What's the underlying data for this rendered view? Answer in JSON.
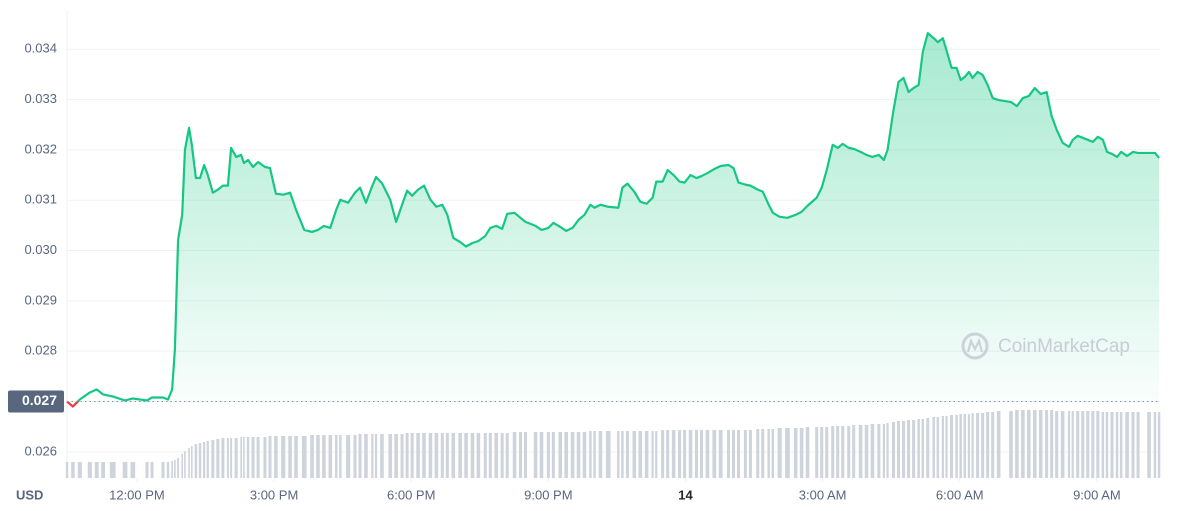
{
  "chart_data": {
    "type": "line",
    "color": "#16c784",
    "down_color": "#ea3943",
    "volume_color": "#cfd3dc",
    "baseline": 0.027,
    "axis_label": "USD",
    "watermark": "CoinMarketCap",
    "grid": true,
    "xlim": [
      10.47,
      34.38
    ],
    "xticks": [
      {
        "value": 12,
        "label": "12:00 PM"
      },
      {
        "value": 15,
        "label": "3:00 PM"
      },
      {
        "value": 18,
        "label": "6:00 PM"
      },
      {
        "value": 21,
        "label": "9:00 PM"
      },
      {
        "value": 24,
        "label": "14"
      },
      {
        "value": 27,
        "label": "3:00 AM"
      },
      {
        "value": 30,
        "label": "6:00 AM"
      },
      {
        "value": 33,
        "label": "9:00 AM"
      }
    ],
    "ylim": [
      0.02548,
      0.03478
    ],
    "yticks": [
      0.026,
      0.027,
      0.028,
      0.029,
      {
        "value": 0.03,
        "label": "0.030"
      },
      0.031,
      0.032,
      0.033,
      0.034
    ],
    "x": [
      10.47,
      10.6,
      10.75,
      10.97,
      11.12,
      11.26,
      11.47,
      11.74,
      11.91,
      12.22,
      12.33,
      12.57,
      12.68,
      12.77,
      12.83,
      12.9,
      12.99,
      13.05,
      13.14,
      13.2,
      13.29,
      13.38,
      13.47,
      13.55,
      13.66,
      13.77,
      13.88,
      13.99,
      14.06,
      14.17,
      14.28,
      14.34,
      14.43,
      14.54,
      14.65,
      14.8,
      14.91,
      15.04,
      15.2,
      15.35,
      15.48,
      15.66,
      15.83,
      15.96,
      16.09,
      16.23,
      16.36,
      16.45,
      16.62,
      16.77,
      16.88,
      17.01,
      17.15,
      17.23,
      17.36,
      17.54,
      17.67,
      17.8,
      17.91,
      18.02,
      18.15,
      18.28,
      18.42,
      18.55,
      18.68,
      18.79,
      18.92,
      19.07,
      19.2,
      19.34,
      19.47,
      19.62,
      19.73,
      19.86,
      19.99,
      20.1,
      20.26,
      20.39,
      20.5,
      20.72,
      20.85,
      21.0,
      21.11,
      21.26,
      21.39,
      21.53,
      21.66,
      21.79,
      21.92,
      22.01,
      22.14,
      22.31,
      22.53,
      22.62,
      22.73,
      22.88,
      23.01,
      23.15,
      23.28,
      23.36,
      23.5,
      23.61,
      23.74,
      23.87,
      23.98,
      24.11,
      24.24,
      24.35,
      24.48,
      24.63,
      24.77,
      24.94,
      25.05,
      25.16,
      25.31,
      25.42,
      25.58,
      25.69,
      25.82,
      25.91,
      26.06,
      26.23,
      26.41,
      26.54,
      26.67,
      26.87,
      26.98,
      27.09,
      27.22,
      27.33,
      27.44,
      27.57,
      27.68,
      27.83,
      27.96,
      28.09,
      28.23,
      28.34,
      28.42,
      28.55,
      28.66,
      28.77,
      28.88,
      28.99,
      29.1,
      29.19,
      29.3,
      29.43,
      29.52,
      29.63,
      29.71,
      29.82,
      29.93,
      30.02,
      30.11,
      30.2,
      30.28,
      30.39,
      30.5,
      30.61,
      30.72,
      30.85,
      31.12,
      31.25,
      31.38,
      31.51,
      31.64,
      31.77,
      31.9,
      32.01,
      32.12,
      32.25,
      32.39,
      32.47,
      32.58,
      32.69,
      32.8,
      32.91,
      33.02,
      33.13,
      33.22,
      33.33,
      33.44,
      33.53,
      33.66,
      33.79,
      33.9,
      34.14,
      34.27,
      34.36
    ],
    "values": [
      0.027,
      0.0269,
      0.02704,
      0.02718,
      0.02724,
      0.02714,
      0.0271,
      0.02702,
      0.02706,
      0.02702,
      0.02708,
      0.02708,
      0.02704,
      0.02724,
      0.02803,
      0.03021,
      0.03071,
      0.032,
      0.03244,
      0.0321,
      0.03144,
      0.03144,
      0.0317,
      0.0315,
      0.03115,
      0.03121,
      0.03129,
      0.03129,
      0.03204,
      0.03186,
      0.0319,
      0.03174,
      0.0318,
      0.03166,
      0.03176,
      0.03166,
      0.03164,
      0.03113,
      0.03111,
      0.03115,
      0.03081,
      0.03041,
      0.03037,
      0.03041,
      0.03049,
      0.03045,
      0.03081,
      0.03101,
      0.03095,
      0.03115,
      0.03125,
      0.03095,
      0.03129,
      0.03146,
      0.03134,
      0.03101,
      0.03057,
      0.03091,
      0.03119,
      0.03109,
      0.03121,
      0.03129,
      0.03101,
      0.03087,
      0.03091,
      0.03071,
      0.03025,
      0.03017,
      0.03008,
      0.03015,
      0.03019,
      0.03029,
      0.03045,
      0.03049,
      0.03043,
      0.03073,
      0.03075,
      0.03065,
      0.03057,
      0.03049,
      0.03041,
      0.03045,
      0.03055,
      0.03047,
      0.03039,
      0.03045,
      0.03061,
      0.03071,
      0.03091,
      0.03085,
      0.03091,
      0.03087,
      0.03085,
      0.03125,
      0.03133,
      0.03117,
      0.03097,
      0.03093,
      0.03105,
      0.03137,
      0.03137,
      0.0316,
      0.0315,
      0.03137,
      0.03135,
      0.0315,
      0.03144,
      0.03148,
      0.03154,
      0.03162,
      0.03168,
      0.0317,
      0.03164,
      0.03135,
      0.03131,
      0.03129,
      0.03121,
      0.03117,
      0.03091,
      0.03075,
      0.03067,
      0.03065,
      0.03071,
      0.03077,
      0.03089,
      0.03105,
      0.03125,
      0.0316,
      0.0321,
      0.03204,
      0.03212,
      0.03204,
      0.03202,
      0.03196,
      0.0319,
      0.03186,
      0.0319,
      0.0318,
      0.032,
      0.03279,
      0.03335,
      0.03343,
      0.03315,
      0.03323,
      0.03329,
      0.03394,
      0.03432,
      0.03422,
      0.03414,
      0.03422,
      0.03398,
      0.03363,
      0.03363,
      0.03339,
      0.03345,
      0.03355,
      0.03343,
      0.03355,
      0.03349,
      0.03329,
      0.03303,
      0.03299,
      0.03295,
      0.03287,
      0.03303,
      0.03307,
      0.03323,
      0.03311,
      0.03315,
      0.03267,
      0.0324,
      0.03214,
      0.03206,
      0.0322,
      0.03228,
      0.03224,
      0.0322,
      0.03216,
      0.03226,
      0.0322,
      0.03196,
      0.03192,
      0.03186,
      0.03196,
      0.03188,
      0.03196,
      0.03194,
      0.03194,
      0.03194,
      0.03184
    ],
    "volume": [
      16,
      16,
      16,
      16,
      16,
      16,
      16,
      16,
      16,
      16,
      16,
      16,
      16,
      17,
      18,
      20,
      24,
      27,
      30,
      32,
      34,
      35,
      36,
      37,
      38,
      39,
      40,
      40,
      40,
      40,
      41,
      41,
      41,
      41,
      41,
      41,
      42,
      42,
      42,
      42,
      42,
      42,
      43,
      43,
      43,
      43,
      43,
      43,
      43,
      43,
      44,
      44,
      44,
      44,
      44,
      44,
      44,
      44,
      45,
      45,
      45,
      45,
      45,
      45,
      45,
      45,
      45,
      45,
      45,
      45,
      45,
      45,
      45,
      45,
      45,
      45,
      46,
      46,
      46,
      46,
      46,
      46,
      46,
      46,
      46,
      46,
      46,
      46,
      47,
      47,
      47,
      47,
      47,
      47,
      47,
      47,
      47,
      47,
      47,
      47,
      48,
      48,
      48,
      48,
      48,
      48,
      48,
      48,
      48,
      48,
      48,
      48,
      48,
      48,
      48,
      48,
      49,
      49,
      49,
      49,
      50,
      50,
      50,
      50,
      51,
      51,
      51,
      51,
      52,
      52,
      52,
      52,
      53,
      53,
      53,
      54,
      54,
      54,
      55,
      56,
      57,
      57,
      58,
      58,
      59,
      59,
      60,
      61,
      61,
      62,
      62,
      63,
      63,
      64,
      64,
      64,
      65,
      65,
      65,
      66,
      66,
      67,
      67,
      68,
      68,
      68,
      68,
      68,
      68,
      68,
      67,
      67,
      67,
      67,
      67,
      67,
      67,
      67,
      67,
      66,
      66,
      66,
      66,
      66,
      66,
      66,
      66,
      66,
      66,
      66
    ]
  }
}
